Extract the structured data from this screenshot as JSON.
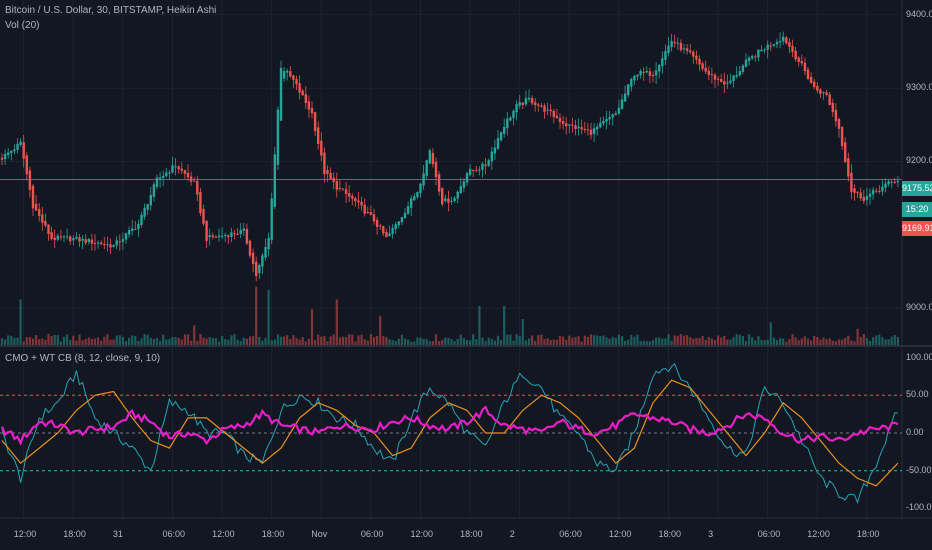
{
  "header": {
    "title": "Bitcoin / U.S. Dollar, 30, BITSTAMP, Heikin Ashi",
    "volume_label": "Vol (20)"
  },
  "indicator": {
    "label": "CMO + WT CB (8, 12, close, 9, 10)"
  },
  "price_axis": {
    "ticks": [
      "9400.00",
      "9300.00",
      "9200.00",
      "9000.00"
    ],
    "last_price": "9175.52",
    "countdown": "15:20",
    "low_price": "9169.91"
  },
  "osc_axis": {
    "ticks": [
      "100.00",
      "50.00",
      "0.00",
      "-50.00",
      "-100.00"
    ]
  },
  "time_axis": {
    "ticks": [
      "12:00",
      "18:00",
      "31",
      "06:00",
      "12:00",
      "18:00",
      "Nov",
      "06:00",
      "12:00",
      "18:00",
      "2",
      "06:00",
      "12:00",
      "18:00",
      "3",
      "06:00",
      "12:00",
      "18:00"
    ]
  },
  "colors": {
    "background": "#131722",
    "up": "#26a69a",
    "down": "#ef5350",
    "cmo": "#e91ec8",
    "wt1": "#26a5b5",
    "wt2": "#e8911e",
    "last_price_line": "#26a69a"
  },
  "chart_data": [
    {
      "type": "candlestick",
      "title": "Bitcoin / U.S. Dollar, 30, BITSTAMP, Heikin Ashi",
      "ylim": [
        8950,
        9420
      ],
      "y_ticks": [
        9400,
        9300,
        9200,
        9000
      ],
      "last_price": 9175.52,
      "close_path": [
        [
          0,
          9205
        ],
        [
          6,
          9225
        ],
        [
          10,
          9140
        ],
        [
          16,
          9095
        ],
        [
          22,
          9095
        ],
        [
          30,
          9090
        ],
        [
          36,
          9085
        ],
        [
          44,
          9115
        ],
        [
          50,
          9175
        ],
        [
          56,
          9195
        ],
        [
          62,
          9170
        ],
        [
          66,
          9095
        ],
        [
          72,
          9100
        ],
        [
          78,
          9105
        ],
        [
          82,
          9045
        ],
        [
          86,
          9095
        ],
        [
          88,
          9210
        ],
        [
          90,
          9330
        ],
        [
          94,
          9310
        ],
        [
          100,
          9265
        ],
        [
          104,
          9185
        ],
        [
          108,
          9165
        ],
        [
          114,
          9145
        ],
        [
          120,
          9120
        ],
        [
          124,
          9095
        ],
        [
          128,
          9120
        ],
        [
          134,
          9160
        ],
        [
          138,
          9215
        ],
        [
          142,
          9145
        ],
        [
          146,
          9150
        ],
        [
          150,
          9185
        ],
        [
          156,
          9195
        ],
        [
          162,
          9250
        ],
        [
          166,
          9275
        ],
        [
          170,
          9285
        ],
        [
          176,
          9268
        ],
        [
          182,
          9250
        ],
        [
          190,
          9240
        ],
        [
          198,
          9265
        ],
        [
          204,
          9320
        ],
        [
          210,
          9320
        ],
        [
          216,
          9365
        ],
        [
          222,
          9345
        ],
        [
          228,
          9318
        ],
        [
          234,
          9305
        ],
        [
          240,
          9335
        ],
        [
          246,
          9355
        ],
        [
          252,
          9370
        ],
        [
          258,
          9330
        ],
        [
          262,
          9300
        ],
        [
          266,
          9290
        ],
        [
          270,
          9245
        ],
        [
          274,
          9160
        ],
        [
          278,
          9150
        ],
        [
          282,
          9160
        ],
        [
          286,
          9170
        ],
        [
          289,
          9175
        ]
      ],
      "volume": {
        "spikes": [
          [
            6,
            0.7
          ],
          [
            62,
            0.3
          ],
          [
            82,
            0.9
          ],
          [
            86,
            0.85
          ],
          [
            100,
            0.55
          ],
          [
            108,
            0.7
          ],
          [
            122,
            0.45
          ],
          [
            154,
            0.6
          ],
          [
            162,
            0.6
          ],
          [
            168,
            0.4
          ],
          [
            248,
            0.35
          ],
          [
            276,
            0.25
          ]
        ]
      }
    },
    {
      "type": "line",
      "title": "CMO + WT CB (8, 12, close, 9, 10)",
      "ylim": [
        -110,
        110
      ],
      "y_ticks": [
        100,
        50,
        0,
        -50,
        -100
      ],
      "levels": [
        50,
        0,
        -50
      ],
      "series": [
        {
          "name": "cmo",
          "points": [
            [
              0,
              5
            ],
            [
              6,
              -10
            ],
            [
              12,
              15
            ],
            [
              18,
              10
            ],
            [
              24,
              0
            ],
            [
              30,
              5
            ],
            [
              36,
              8
            ],
            [
              42,
              25
            ],
            [
              48,
              15
            ],
            [
              54,
              -5
            ],
            [
              60,
              0
            ],
            [
              66,
              -10
            ],
            [
              72,
              5
            ],
            [
              78,
              10
            ],
            [
              84,
              25
            ],
            [
              90,
              10
            ],
            [
              96,
              5
            ],
            [
              102,
              0
            ],
            [
              108,
              10
            ],
            [
              114,
              8
            ],
            [
              120,
              5
            ],
            [
              126,
              15
            ],
            [
              132,
              20
            ],
            [
              138,
              10
            ],
            [
              144,
              5
            ],
            [
              150,
              15
            ],
            [
              156,
              30
            ],
            [
              162,
              10
            ],
            [
              168,
              5
            ],
            [
              174,
              0
            ],
            [
              180,
              15
            ],
            [
              186,
              5
            ],
            [
              192,
              0
            ],
            [
              198,
              10
            ],
            [
              204,
              25
            ],
            [
              210,
              20
            ],
            [
              216,
              15
            ],
            [
              222,
              5
            ],
            [
              228,
              0
            ],
            [
              234,
              10
            ],
            [
              240,
              25
            ],
            [
              246,
              20
            ],
            [
              252,
              0
            ],
            [
              258,
              -10
            ],
            [
              264,
              -5
            ],
            [
              270,
              -10
            ],
            [
              276,
              0
            ],
            [
              282,
              5
            ],
            [
              289,
              10
            ]
          ]
        },
        {
          "name": "wt1",
          "points": [
            [
              0,
              0
            ],
            [
              6,
              -60
            ],
            [
              12,
              20
            ],
            [
              18,
              40
            ],
            [
              24,
              80
            ],
            [
              30,
              20
            ],
            [
              36,
              0
            ],
            [
              42,
              -20
            ],
            [
              48,
              -50
            ],
            [
              54,
              40
            ],
            [
              60,
              30
            ],
            [
              66,
              0
            ],
            [
              72,
              0
            ],
            [
              78,
              -30
            ],
            [
              84,
              -40
            ],
            [
              90,
              30
            ],
            [
              96,
              50
            ],
            [
              102,
              40
            ],
            [
              108,
              20
            ],
            [
              114,
              10
            ],
            [
              120,
              -20
            ],
            [
              126,
              -40
            ],
            [
              132,
              20
            ],
            [
              138,
              60
            ],
            [
              144,
              40
            ],
            [
              150,
              0
            ],
            [
              156,
              -20
            ],
            [
              162,
              40
            ],
            [
              168,
              80
            ],
            [
              174,
              60
            ],
            [
              180,
              20
            ],
            [
              186,
              0
            ],
            [
              192,
              -40
            ],
            [
              198,
              -50
            ],
            [
              204,
              0
            ],
            [
              210,
              80
            ],
            [
              216,
              90
            ],
            [
              222,
              60
            ],
            [
              228,
              20
            ],
            [
              234,
              -20
            ],
            [
              240,
              -30
            ],
            [
              246,
              60
            ],
            [
              252,
              40
            ],
            [
              258,
              -10
            ],
            [
              264,
              -60
            ],
            [
              270,
              -80
            ],
            [
              276,
              -90
            ],
            [
              282,
              -40
            ],
            [
              289,
              30
            ]
          ]
        },
        {
          "name": "wt2",
          "points": [
            [
              0,
              -10
            ],
            [
              6,
              -40
            ],
            [
              12,
              -20
            ],
            [
              18,
              0
            ],
            [
              24,
              30
            ],
            [
              30,
              50
            ],
            [
              36,
              55
            ],
            [
              42,
              20
            ],
            [
              48,
              -10
            ],
            [
              54,
              -20
            ],
            [
              60,
              20
            ],
            [
              66,
              20
            ],
            [
              72,
              0
            ],
            [
              78,
              -20
            ],
            [
              84,
              -40
            ],
            [
              90,
              -20
            ],
            [
              96,
              20
            ],
            [
              102,
              40
            ],
            [
              108,
              30
            ],
            [
              114,
              10
            ],
            [
              120,
              0
            ],
            [
              126,
              -30
            ],
            [
              132,
              -20
            ],
            [
              138,
              20
            ],
            [
              144,
              40
            ],
            [
              150,
              30
            ],
            [
              156,
              0
            ],
            [
              162,
              0
            ],
            [
              168,
              30
            ],
            [
              174,
              50
            ],
            [
              180,
              40
            ],
            [
              186,
              20
            ],
            [
              192,
              -10
            ],
            [
              198,
              -40
            ],
            [
              204,
              -20
            ],
            [
              210,
              40
            ],
            [
              216,
              70
            ],
            [
              222,
              60
            ],
            [
              228,
              30
            ],
            [
              234,
              0
            ],
            [
              240,
              -30
            ],
            [
              246,
              0
            ],
            [
              252,
              40
            ],
            [
              258,
              20
            ],
            [
              264,
              -10
            ],
            [
              270,
              -40
            ],
            [
              276,
              -60
            ],
            [
              282,
              -70
            ],
            [
              289,
              -40
            ]
          ]
        }
      ]
    }
  ]
}
